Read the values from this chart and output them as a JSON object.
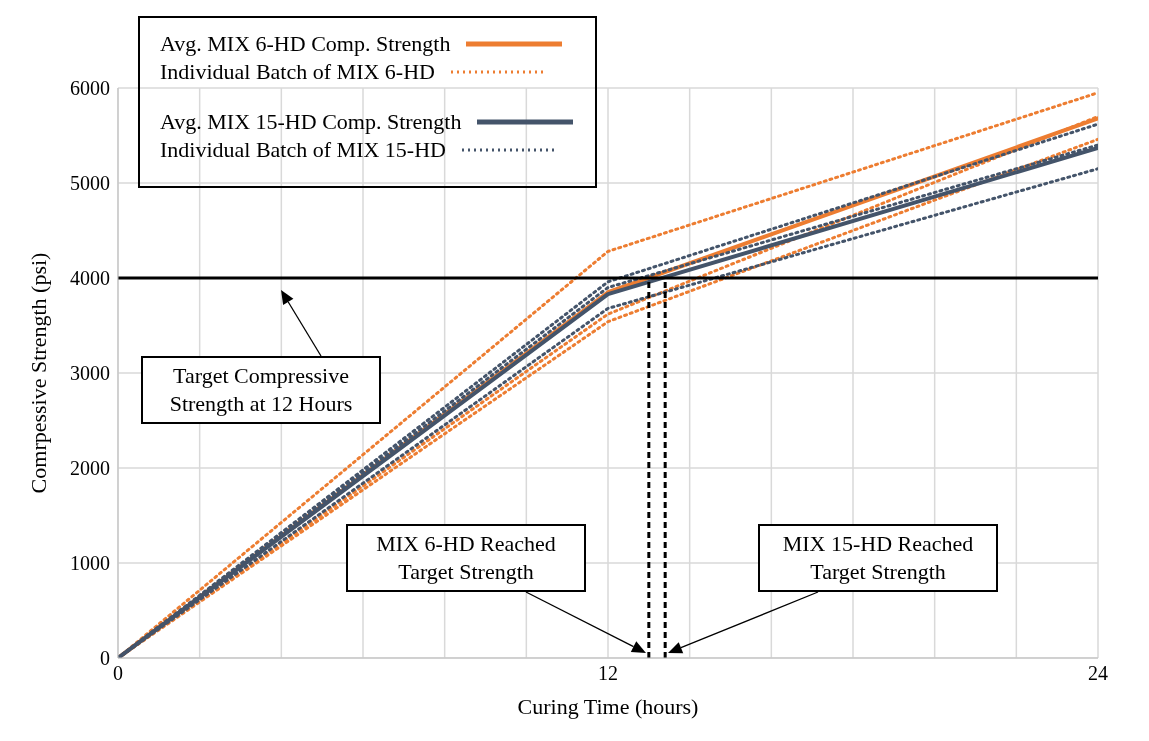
{
  "chart_data": {
    "type": "line",
    "xlabel": "Curing Time (hours)",
    "ylabel": "Comrpessive Strength (psi)",
    "xlim": [
      0,
      24
    ],
    "xticks": [
      0,
      {
        "value": 2,
        "label": null
      },
      {
        "value": 4,
        "label": null
      },
      {
        "value": 6,
        "label": null
      },
      {
        "value": 8,
        "label": null
      },
      {
        "value": 10,
        "label": null
      },
      12,
      {
        "value": 14,
        "label": null
      },
      {
        "value": 16,
        "label": null
      },
      {
        "value": 18,
        "label": null
      },
      {
        "value": 20,
        "label": null
      },
      {
        "value": 22,
        "label": null
      },
      24
    ],
    "ylim": [
      0,
      6000
    ],
    "yticks": [
      0,
      1000,
      2000,
      3000,
      4000,
      5000,
      6000
    ],
    "grid": true,
    "legend": "top left",
    "marker": "none",
    "series": [
      {
        "name": "Avg. MIX 6-HD Comp. Strength",
        "color": "#ed7d31",
        "line_style": "solid",
        "x": [
          0,
          12,
          24
        ],
        "values": [
          0,
          3850,
          5680
        ]
      },
      {
        "name": "Individual Batch of MIX 6-HD",
        "color": "#ed7d31",
        "line_style": "dotted",
        "x": [
          0,
          12,
          24
        ],
        "values": [
          0,
          4280,
          5950
        ]
      },
      {
        "color": "#ed7d31",
        "line_style": "dotted",
        "x": [
          0,
          12,
          24
        ],
        "values": [
          0,
          3620,
          5700
        ]
      },
      {
        "color": "#ed7d31",
        "line_style": "dotted",
        "x": [
          0,
          12,
          24
        ],
        "values": [
          0,
          3540,
          5460
        ]
      },
      {
        "name": "Avg. MIX 15-HD Comp. Strength",
        "color": "#44546a",
        "line_style": "solid",
        "x": [
          0,
          12,
          24
        ],
        "values": [
          0,
          3830,
          5370
        ]
      },
      {
        "name": "Individual Batch of MIX 15-HD",
        "color": "#44546a",
        "line_style": "dotted",
        "x": [
          0,
          12,
          24
        ],
        "values": [
          0,
          3960,
          5620
        ]
      },
      {
        "color": "#44546a",
        "line_style": "dotted",
        "x": [
          0,
          12,
          24
        ],
        "values": [
          0,
          3900,
          5400
        ]
      },
      {
        "color": "#44546a",
        "line_style": "dotted",
        "x": [
          0,
          12,
          24
        ],
        "values": [
          0,
          3680,
          5150
        ]
      }
    ],
    "ref_lines": [
      {
        "axis": "y",
        "value": 4000,
        "color": "#000000",
        "line_style": "solid"
      },
      {
        "axis": "x",
        "value": 13.0,
        "color": "#000000",
        "line_style": "dashed"
      },
      {
        "axis": "x",
        "value": 13.4,
        "color": "#000000",
        "line_style": "dashed"
      }
    ],
    "annotations": [
      "Target Compressive Strength at 12 Hours",
      "MIX 6-HD Reached Target Strength",
      "MIX 15-HD Reached Target Strength"
    ]
  }
}
